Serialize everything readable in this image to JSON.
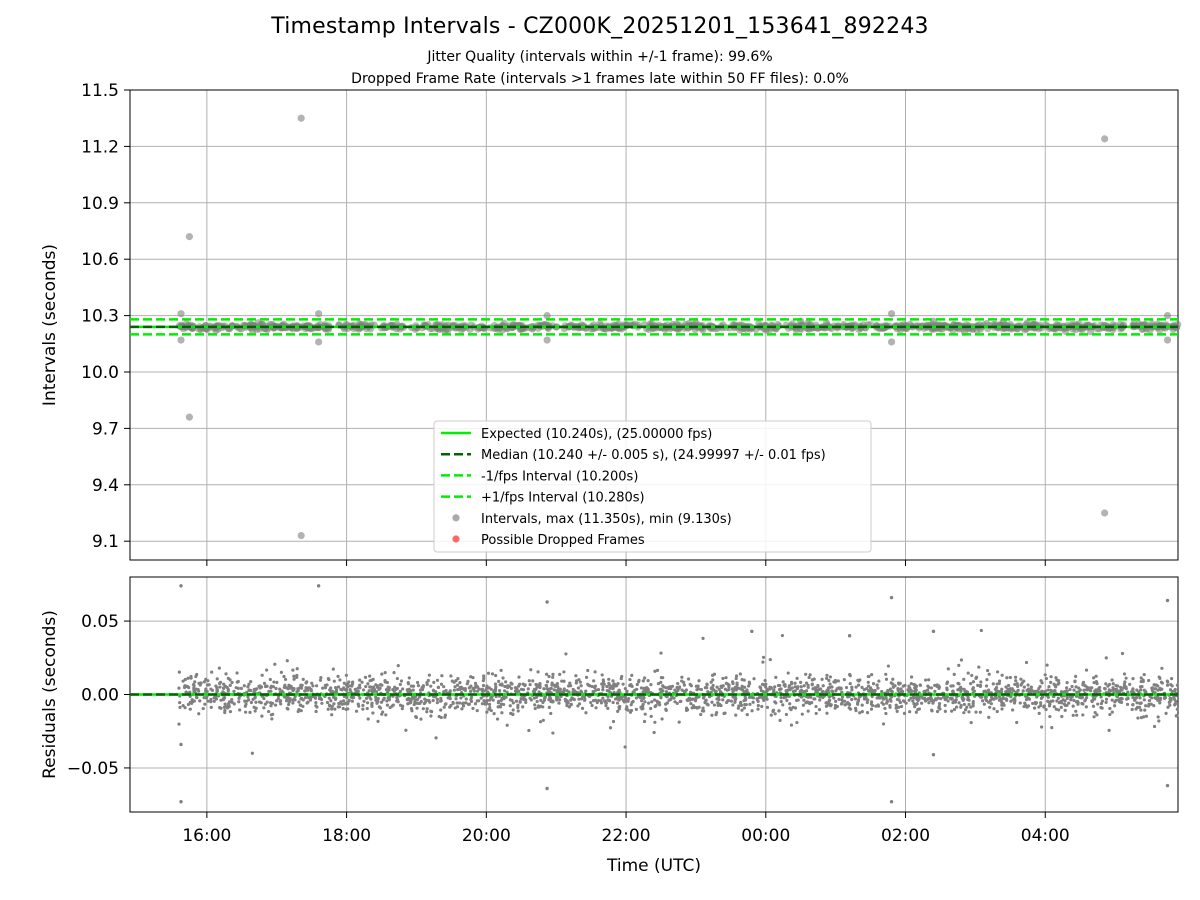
{
  "title": "Timestamp Intervals - CZ000K_20251201_153641_892243",
  "subtitle_1": "Jitter Quality (intervals within +/-1 frame): 99.6%",
  "subtitle_2": "Dropped Frame Rate (intervals >1 frames late within 50 FF files): 0.0%",
  "colors": {
    "expected": "#00ee00",
    "median": "#006400",
    "fps_band": "#00ee00",
    "points": "#808080",
    "dropped": "#ff5555",
    "grid": "#b0b0b0"
  },
  "chart_data": [
    {
      "type": "scatter",
      "panel": "intervals",
      "ylabel": "Intervals (seconds)",
      "ylim": [
        9.0,
        11.5
      ],
      "xlim_hours": [
        14.9,
        29.9
      ],
      "yticks": [
        "11.5",
        "11.2",
        "10.9",
        "10.6",
        "10.3",
        "10.0",
        "9.7",
        "9.4",
        "9.1"
      ],
      "ytick_values": [
        11.5,
        11.2,
        10.9,
        10.6,
        10.3,
        10.0,
        9.7,
        9.4,
        9.1
      ],
      "grid": true,
      "legend_placement": "lower-center",
      "lines": [
        {
          "name": "Expected (10.240s), (25.00000 fps)",
          "y": 10.24,
          "style": "solid",
          "color": "#00ee00"
        },
        {
          "name": "Median (10.240 +/- 0.005 s), (24.99997 +/- 0.01 fps)",
          "y": 10.24,
          "style": "dashed",
          "color": "#006400"
        },
        {
          "name": "-1/fps Interval (10.200s)",
          "y": 10.2,
          "style": "dashed",
          "color": "#00ee00"
        },
        {
          "name": "+1/fps Interval (10.280s)",
          "y": 10.28,
          "style": "dashed",
          "color": "#00ee00"
        }
      ],
      "series": [
        {
          "name": "Intervals, max (11.350s), min (9.130s)",
          "marker": "circle",
          "color": "#a0a0a0"
        },
        {
          "name": "Possible Dropped Frames",
          "marker": "circle",
          "color": "#ff5555"
        }
      ],
      "outliers": [
        {
          "x": 15.63,
          "y": 10.31
        },
        {
          "x": 15.63,
          "y": 10.17
        },
        {
          "x": 15.75,
          "y": 10.72
        },
        {
          "x": 15.75,
          "y": 9.76
        },
        {
          "x": 17.35,
          "y": 11.35
        },
        {
          "x": 17.35,
          "y": 9.13
        },
        {
          "x": 17.6,
          "y": 10.31
        },
        {
          "x": 17.6,
          "y": 10.16
        },
        {
          "x": 20.87,
          "y": 10.3
        },
        {
          "x": 20.87,
          "y": 10.17
        },
        {
          "x": 23.0,
          "y": 10.26
        },
        {
          "x": 24.5,
          "y": 10.27
        },
        {
          "x": 25.8,
          "y": 10.31
        },
        {
          "x": 25.8,
          "y": 10.16
        },
        {
          "x": 26.4,
          "y": 10.27
        },
        {
          "x": 27.4,
          "y": 10.27
        },
        {
          "x": 28.85,
          "y": 11.24
        },
        {
          "x": 28.85,
          "y": 9.25
        },
        {
          "x": 29.75,
          "y": 10.3
        },
        {
          "x": 29.75,
          "y": 10.17
        }
      ]
    },
    {
      "type": "scatter",
      "panel": "residuals",
      "ylabel": "Residuals (seconds)",
      "xlabel": "Time (UTC)",
      "ylim": [
        -0.08,
        0.08
      ],
      "xlim_hours": [
        14.9,
        29.9
      ],
      "yticks": [
        "0.05",
        "0.00",
        "−0.05"
      ],
      "ytick_values": [
        0.05,
        0.0,
        -0.05
      ],
      "xticks": [
        "16:00",
        "18:00",
        "20:00",
        "22:00",
        "00:00",
        "02:00",
        "04:00"
      ],
      "xtick_hours": [
        16,
        18,
        20,
        22,
        24,
        26,
        28
      ],
      "grid": true,
      "series": [
        {
          "name": "Residuals",
          "color": "#808080"
        }
      ],
      "outliers": [
        {
          "x": 15.63,
          "y": 0.074
        },
        {
          "x": 15.63,
          "y": -0.073
        },
        {
          "x": 15.63,
          "y": -0.034
        },
        {
          "x": 17.6,
          "y": 0.074
        },
        {
          "x": 20.87,
          "y": 0.063
        },
        {
          "x": 20.87,
          "y": -0.064
        },
        {
          "x": 23.8,
          "y": 0.043
        },
        {
          "x": 25.2,
          "y": 0.04
        },
        {
          "x": 25.8,
          "y": 0.066
        },
        {
          "x": 25.8,
          "y": -0.073
        },
        {
          "x": 26.4,
          "y": 0.043
        },
        {
          "x": 26.4,
          "y": -0.041
        },
        {
          "x": 29.75,
          "y": 0.064
        },
        {
          "x": 29.75,
          "y": -0.062
        }
      ]
    }
  ]
}
